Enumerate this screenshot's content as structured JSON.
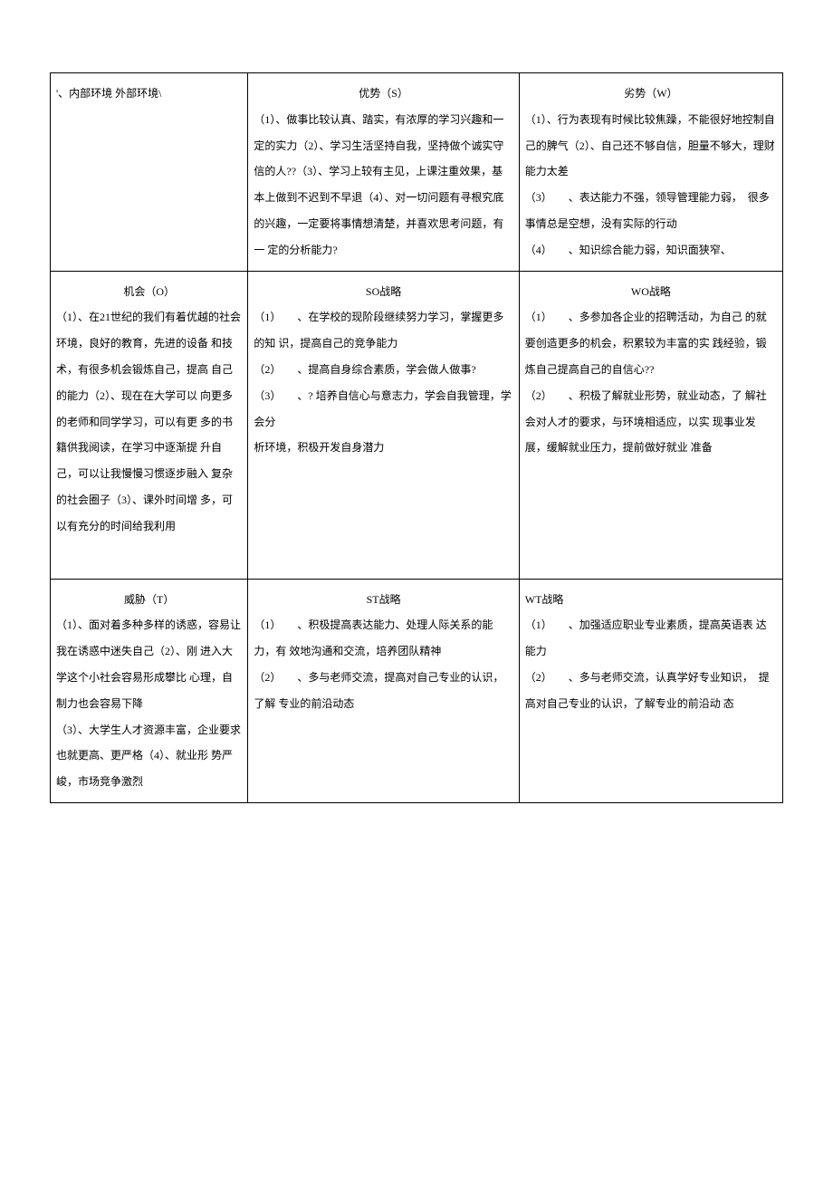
{
  "table": {
    "header_cell": "'、内部环境 外部环境\\",
    "strengths": {
      "heading": "优势（S）",
      "body": "（1）、做事比较认真、踏实，有浓厚的学习兴趣和一 定的实力（2）、学习生活坚持自我，坚持做个诚实守 信的人??（3）、学习上较有主见，上课注重效果，基 本上做到不迟到不早退（4）、对一切问题有寻根究底 的兴趣，一定要将事情想清楚，并喜欢思考问题，有一 定的分析能力?"
    },
    "weaknesses": {
      "heading": "劣势（W）",
      "body": "（1）、行为表现有时候比较焦躁，不能很好地控制自己的脾气（2）、自己还不够自信，胆量不够大，理财能力太差\n（3）　　、表达能力不强，领导管理能力弱，　很多事情总是空想，没有实际的行动\n（4）　　、知识综合能力弱，知识面狭窄、"
    },
    "opportunities": {
      "heading": "机会（O）",
      "body": "（1）、在21世纪的我们有着优越的社会环境，良好的教育，先进的设备 和技术，有很多机会锻炼自己，提高 自己的能力（2）、现在在大学可以 向更多的老师和同学学习，可以有更 多的书籍供我阅读，在学习中逐渐提 升自己，可以让我慢慢习惯逐步融入 复杂的社会圈子（3）、课外时间增 多，可以有充分的时间给我利用"
    },
    "so_strategy": {
      "heading": "SO战略",
      "body": "（1）　　、在学校的现阶段继续努力学习，掌握更多的知 识，提高自己的竞争能力\n（2）　　、提高自身综合素质，学会做人做事?\n（3）　　、? 培养自信心与意志力，学会自我管理，学会分\n析环境，积极开发自身潜力"
    },
    "wo_strategy": {
      "heading": "WO战略",
      "body": "（1）　　、多参加各企业的招聘活动，为自己 的就要创造更多的机会，积累较为丰富的实 践经验，锻炼自己提高自己的自信心??\n（2）　　、积极了解就业形势，就业动态，了 解社会对人才的要求，与环境相适应，以实 现事业发展，缓解就业压力，提前做好就业 准备"
    },
    "threats": {
      "heading": "威胁（T）",
      "body": "（1）、面对着多种多样的诱惑，容易让我在诱惑中迷失自己（2）、刚 进入大学这个小社会容易形成攀比 心理，自制力也会容易下降\n（3）、大学生人才资源丰富，企业要求也就更高、更严格（4）、就业形 势严峻，市场竞争激烈"
    },
    "st_strategy": {
      "heading": "ST战略",
      "body": "（1）　　、积极提高表达能力、处理人际关系的能力，有 效地沟通和交流，培养团队精神\n（2）　　、多与老师交流，提高对自己专业的认识，了解 专业的前沿动态"
    },
    "wt_strategy": {
      "heading": "WT战略",
      "body": "（1）　　、加强适应职业专业素质，提高英语表 达能力\n（2）　　、多与老师交流，认真学好专业知识，　提高对自己专业的认识，了解专业的前沿动 态"
    }
  },
  "colors": {
    "border": "#000000",
    "background": "#ffffff",
    "text": "#000000"
  },
  "fonts": {
    "body_size": 12,
    "header_size": 20,
    "family": "SimSun"
  }
}
